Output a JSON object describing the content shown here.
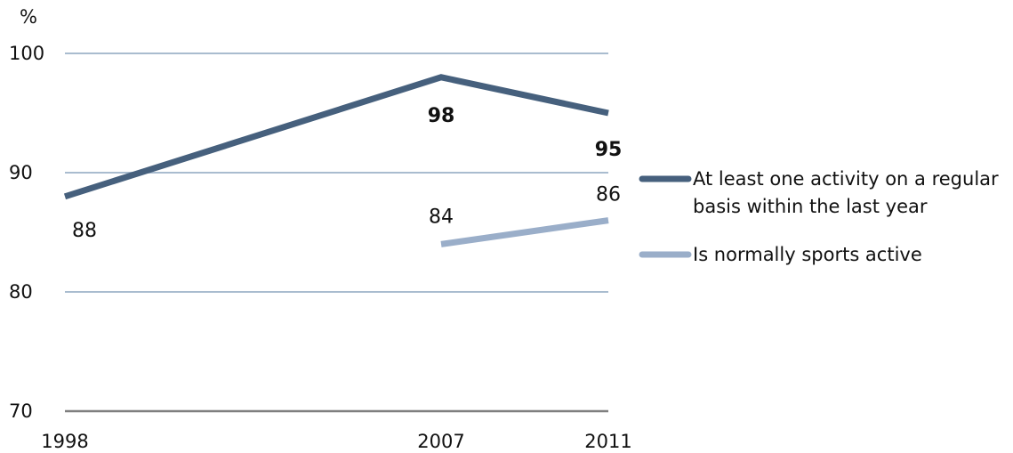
{
  "chart_data": {
    "type": "line",
    "unit_label": "%",
    "x": [
      "1998",
      "2007",
      "2011"
    ],
    "x_values": [
      1998,
      2007,
      2011
    ],
    "ylim": [
      70,
      100
    ],
    "yticks": [
      70,
      80,
      90,
      100
    ],
    "grid": true,
    "legend_position": "right",
    "series": [
      {
        "name": "At least one activity on a regular basis within the last year",
        "name_lines": [
          "At least one activity on a regular",
          "basis within the last year"
        ],
        "color": "#46607d",
        "points": [
          {
            "x": 1998,
            "y": 88,
            "label": "88",
            "bold": false
          },
          {
            "x": 2007,
            "y": 98,
            "label": "98",
            "bold": true
          },
          {
            "x": 2011,
            "y": 95,
            "label": "95",
            "bold": true
          }
        ]
      },
      {
        "name": "Is normally sports active",
        "name_lines": [
          "Is normally sports active"
        ],
        "color": "#9aaec9",
        "points": [
          {
            "x": 2007,
            "y": 84,
            "label": "84",
            "bold": false
          },
          {
            "x": 2011,
            "y": 86,
            "label": "86",
            "bold": false
          }
        ]
      }
    ]
  },
  "colors": {
    "gridline": "#a9bccf",
    "baseline": "#7f7f7f",
    "text": "#111111"
  }
}
